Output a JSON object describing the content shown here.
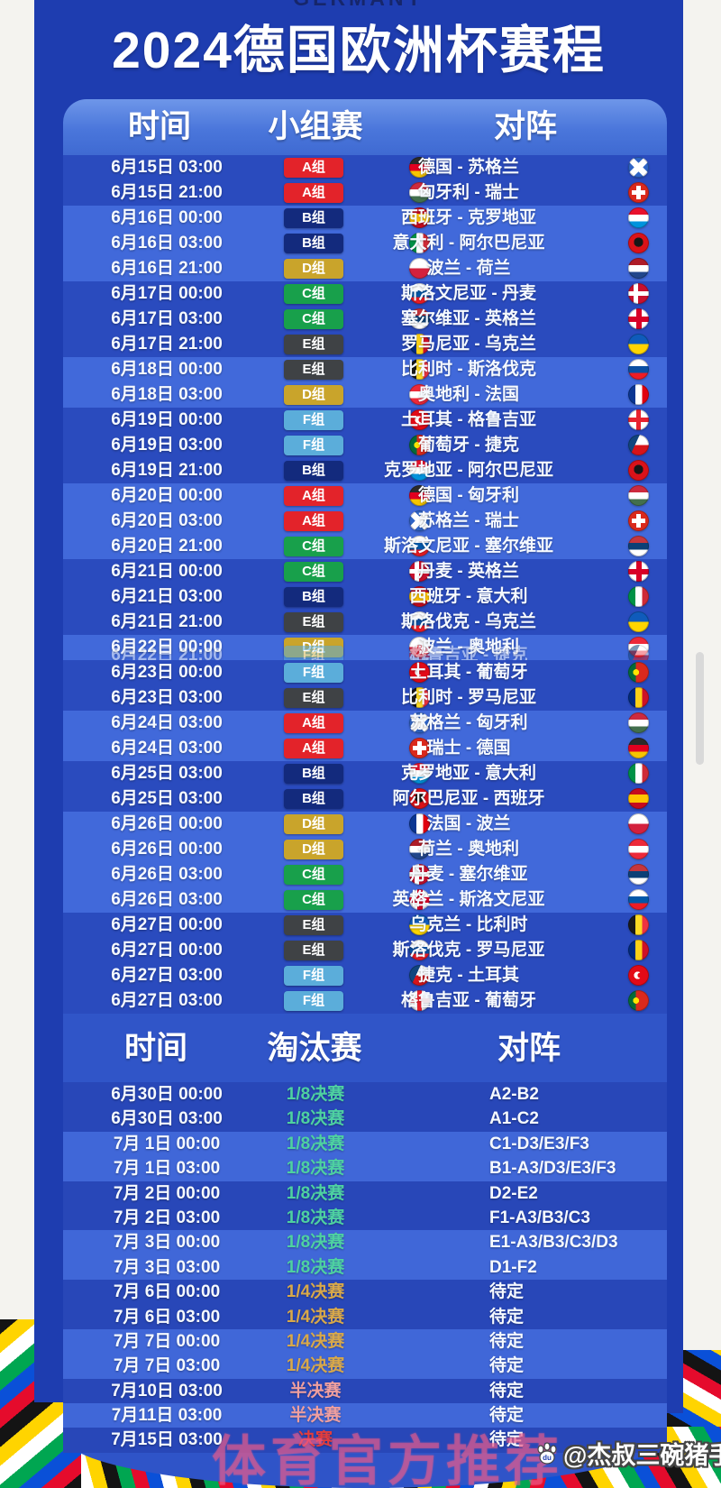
{
  "page": {
    "top_label": "GERMANY",
    "title": "2024德国欧洲杯赛程",
    "watermark": "体育官方推荐",
    "credit": "@杰叔三碗猪手面",
    "paw_text": "du"
  },
  "group_stage": {
    "headers": {
      "time": "时间",
      "stage": "小组赛",
      "match": "对阵"
    },
    "groups": {
      "A": {
        "label": "A组",
        "color": "#e3232a"
      },
      "B": {
        "label": "B组",
        "color": "#132a7d"
      },
      "C": {
        "label": "C组",
        "color": "#18a04b"
      },
      "D": {
        "label": "D组",
        "color": "#c9a42b"
      },
      "E": {
        "label": "E组",
        "color": "#3f4245"
      },
      "F": {
        "label": "F组",
        "color": "#5badda"
      }
    },
    "rows": [
      {
        "time": "6月15日 03:00",
        "group": "A",
        "home_flag": "germany",
        "match": "德国 - 苏格兰",
        "away_flag": "scotland",
        "band": "dark"
      },
      {
        "time": "6月15日 21:00",
        "group": "A",
        "home_flag": "hungary",
        "match": "匈牙利 - 瑞士",
        "away_flag": "switzerland",
        "band": "dark"
      },
      {
        "time": "6月16日 00:00",
        "group": "B",
        "home_flag": "spain",
        "match": "西班牙 - 克罗地亚",
        "away_flag": "croatia",
        "band": "light"
      },
      {
        "time": "6月16日 03:00",
        "group": "B",
        "home_flag": "italy",
        "match": "意大利 - 阿尔巴尼亚",
        "away_flag": "albania",
        "band": "light"
      },
      {
        "time": "6月16日 21:00",
        "group": "D",
        "home_flag": "poland",
        "match": "波兰 - 荷兰",
        "away_flag": "netherlands",
        "band": "light"
      },
      {
        "time": "6月17日 00:00",
        "group": "C",
        "home_flag": "slovenia",
        "match": "斯洛文尼亚 - 丹麦",
        "away_flag": "denmark",
        "band": "dark"
      },
      {
        "time": "6月17日 03:00",
        "group": "C",
        "home_flag": "serbia",
        "match": "塞尔维亚 - 英格兰",
        "away_flag": "england",
        "band": "dark"
      },
      {
        "time": "6月17日 21:00",
        "group": "E",
        "home_flag": "romania",
        "match": "罗马尼亚 - 乌克兰",
        "away_flag": "ukraine",
        "band": "dark"
      },
      {
        "time": "6月18日 00:00",
        "group": "E",
        "home_flag": "belgium",
        "match": "比利时 - 斯洛伐克",
        "away_flag": "slovakia",
        "band": "light"
      },
      {
        "time": "6月18日 03:00",
        "group": "D",
        "home_flag": "austria",
        "match": "奥地利 - 法国",
        "away_flag": "france",
        "band": "light"
      },
      {
        "time": "6月19日 00:00",
        "group": "F",
        "home_flag": "turkey",
        "match": "土耳其 - 格鲁吉亚",
        "away_flag": "georgia",
        "band": "dark"
      },
      {
        "time": "6月19日 03:00",
        "group": "F",
        "home_flag": "portugal",
        "match": "葡萄牙 - 捷克",
        "away_flag": "czech",
        "band": "dark"
      },
      {
        "time": "6月19日 21:00",
        "group": "B",
        "home_flag": "croatia",
        "match": "克罗地亚 - 阿尔巴尼亚",
        "away_flag": "albania",
        "band": "dark"
      },
      {
        "time": "6月20日 00:00",
        "group": "A",
        "home_flag": "germany",
        "match": "德国 - 匈牙利",
        "away_flag": "hungary",
        "band": "light"
      },
      {
        "time": "6月20日 03:00",
        "group": "A",
        "home_flag": "scotland",
        "match": "苏格兰 - 瑞士",
        "away_flag": "switzerland",
        "band": "light"
      },
      {
        "time": "6月20日 21:00",
        "group": "C",
        "home_flag": "slovenia",
        "match": "斯洛文尼亚 - 塞尔维亚",
        "away_flag": "serbia",
        "band": "light"
      },
      {
        "time": "6月21日 00:00",
        "group": "C",
        "home_flag": "denmark",
        "match": "丹麦 - 英格兰",
        "away_flag": "england",
        "band": "dark"
      },
      {
        "time": "6月21日 03:00",
        "group": "B",
        "home_flag": "spain",
        "match": "西班牙 - 意大利",
        "away_flag": "italy",
        "band": "dark"
      },
      {
        "time": "6月21日 21:00",
        "group": "E",
        "home_flag": "slovakia",
        "match": "斯洛伐克 - 乌克兰",
        "away_flag": "ukraine",
        "band": "dark"
      },
      {
        "time": "6月22日 00:00",
        "group": "D",
        "home_flag": "poland",
        "match": "波兰 - 奥地利",
        "away_flag": "austria",
        "band": "light",
        "ghost": {
          "time": "6月22日 21:00",
          "group": "F",
          "home_flag": "georgia",
          "match": "格鲁吉亚 - 捷克",
          "away_flag": "czech"
        }
      },
      {
        "time": "6月23日 00:00",
        "group": "F",
        "home_flag": "turkey",
        "match": "土耳其 - 葡萄牙",
        "away_flag": "portugal",
        "band": "dark"
      },
      {
        "time": "6月23日 03:00",
        "group": "E",
        "home_flag": "belgium",
        "match": "比利时 - 罗马尼亚",
        "away_flag": "romania",
        "band": "dark"
      },
      {
        "time": "6月24日 03:00",
        "group": "A",
        "home_flag": "scotland",
        "match": "苏格兰 - 匈牙利",
        "away_flag": "hungary",
        "band": "light"
      },
      {
        "time": "6月24日 03:00",
        "group": "A",
        "home_flag": "switzerland",
        "match": "瑞士 - 德国",
        "away_flag": "germany",
        "band": "light"
      },
      {
        "time": "6月25日 03:00",
        "group": "B",
        "home_flag": "croatia",
        "match": "克罗地亚 - 意大利",
        "away_flag": "italy",
        "band": "dark"
      },
      {
        "time": "6月25日 03:00",
        "group": "B",
        "home_flag": "albania",
        "match": "阿尔巴尼亚 - 西班牙",
        "away_flag": "spain",
        "band": "dark"
      },
      {
        "time": "6月26日 00:00",
        "group": "D",
        "home_flag": "france",
        "match": "法国 - 波兰",
        "away_flag": "poland",
        "band": "light"
      },
      {
        "time": "6月26日 00:00",
        "group": "D",
        "home_flag": "netherlands",
        "match": "荷兰 - 奥地利",
        "away_flag": "austria",
        "band": "light"
      },
      {
        "time": "6月26日 03:00",
        "group": "C",
        "home_flag": "denmark",
        "match": "丹麦 - 塞尔维亚",
        "away_flag": "serbia",
        "band": "light"
      },
      {
        "time": "6月26日 03:00",
        "group": "C",
        "home_flag": "england",
        "match": "英格兰 - 斯洛文尼亚",
        "away_flag": "slovenia",
        "band": "light"
      },
      {
        "time": "6月27日 00:00",
        "group": "E",
        "home_flag": "ukraine",
        "match": "乌克兰 - 比利时",
        "away_flag": "belgium",
        "band": "dark"
      },
      {
        "time": "6月27日 00:00",
        "group": "E",
        "home_flag": "slovakia",
        "match": "斯洛伐克 - 罗马尼亚",
        "away_flag": "romania",
        "band": "dark"
      },
      {
        "time": "6月27日 03:00",
        "group": "F",
        "home_flag": "czech",
        "match": "捷克 - 土耳其",
        "away_flag": "turkey",
        "band": "dark"
      },
      {
        "time": "6月27日 03:00",
        "group": "F",
        "home_flag": "georgia",
        "match": "格鲁吉亚 - 葡萄牙",
        "away_flag": "portugal",
        "band": "dark"
      }
    ]
  },
  "knockout": {
    "headers": {
      "time": "时间",
      "stage": "淘汰赛",
      "match": "对阵"
    },
    "stage_colors": {
      "r16": "#4ed1a1",
      "qf": "#d8a84a",
      "sf": "#ef9f9f",
      "final": "#e23d3d"
    },
    "rows": [
      {
        "time": "6月30日 00:00",
        "stage": "1/8决赛",
        "stage_type": "r16",
        "match": "A2-B2",
        "band": "dark"
      },
      {
        "time": "6月30日 03:00",
        "stage": "1/8决赛",
        "stage_type": "r16",
        "match": "A1-C2",
        "band": "dark"
      },
      {
        "time": "7月 1日 00:00",
        "stage": "1/8决赛",
        "stage_type": "r16",
        "match": "C1-D3/E3/F3",
        "band": "light"
      },
      {
        "time": "7月 1日 03:00",
        "stage": "1/8决赛",
        "stage_type": "r16",
        "match": "B1-A3/D3/E3/F3",
        "band": "light"
      },
      {
        "time": "7月 2日 00:00",
        "stage": "1/8决赛",
        "stage_type": "r16",
        "match": "D2-E2",
        "band": "dark"
      },
      {
        "time": "7月 2日 03:00",
        "stage": "1/8决赛",
        "stage_type": "r16",
        "match": "F1-A3/B3/C3",
        "band": "dark"
      },
      {
        "time": "7月 3日 00:00",
        "stage": "1/8决赛",
        "stage_type": "r16",
        "match": "E1-A3/B3/C3/D3",
        "band": "light"
      },
      {
        "time": "7月 3日 03:00",
        "stage": "1/8决赛",
        "stage_type": "r16",
        "match": "D1-F2",
        "band": "light"
      },
      {
        "time": "7月 6日 00:00",
        "stage": "1/4决赛",
        "stage_type": "qf",
        "match": "待定",
        "band": "dark"
      },
      {
        "time": "7月 6日 03:00",
        "stage": "1/4决赛",
        "stage_type": "qf",
        "match": "待定",
        "band": "dark"
      },
      {
        "time": "7月 7日 00:00",
        "stage": "1/4决赛",
        "stage_type": "qf",
        "match": "待定",
        "band": "light"
      },
      {
        "time": "7月 7日 03:00",
        "stage": "1/4决赛",
        "stage_type": "qf",
        "match": "待定",
        "band": "light"
      },
      {
        "time": "7月10日 03:00",
        "stage": "半决赛",
        "stage_type": "sf",
        "match": "待定",
        "band": "dark"
      },
      {
        "time": "7月11日 03:00",
        "stage": "半决赛",
        "stage_type": "sf",
        "match": "待定",
        "band": "light"
      },
      {
        "time": "7月15日 03:00",
        "stage": "决赛",
        "stage_type": "final",
        "match": "待定",
        "band": "dark"
      }
    ]
  }
}
